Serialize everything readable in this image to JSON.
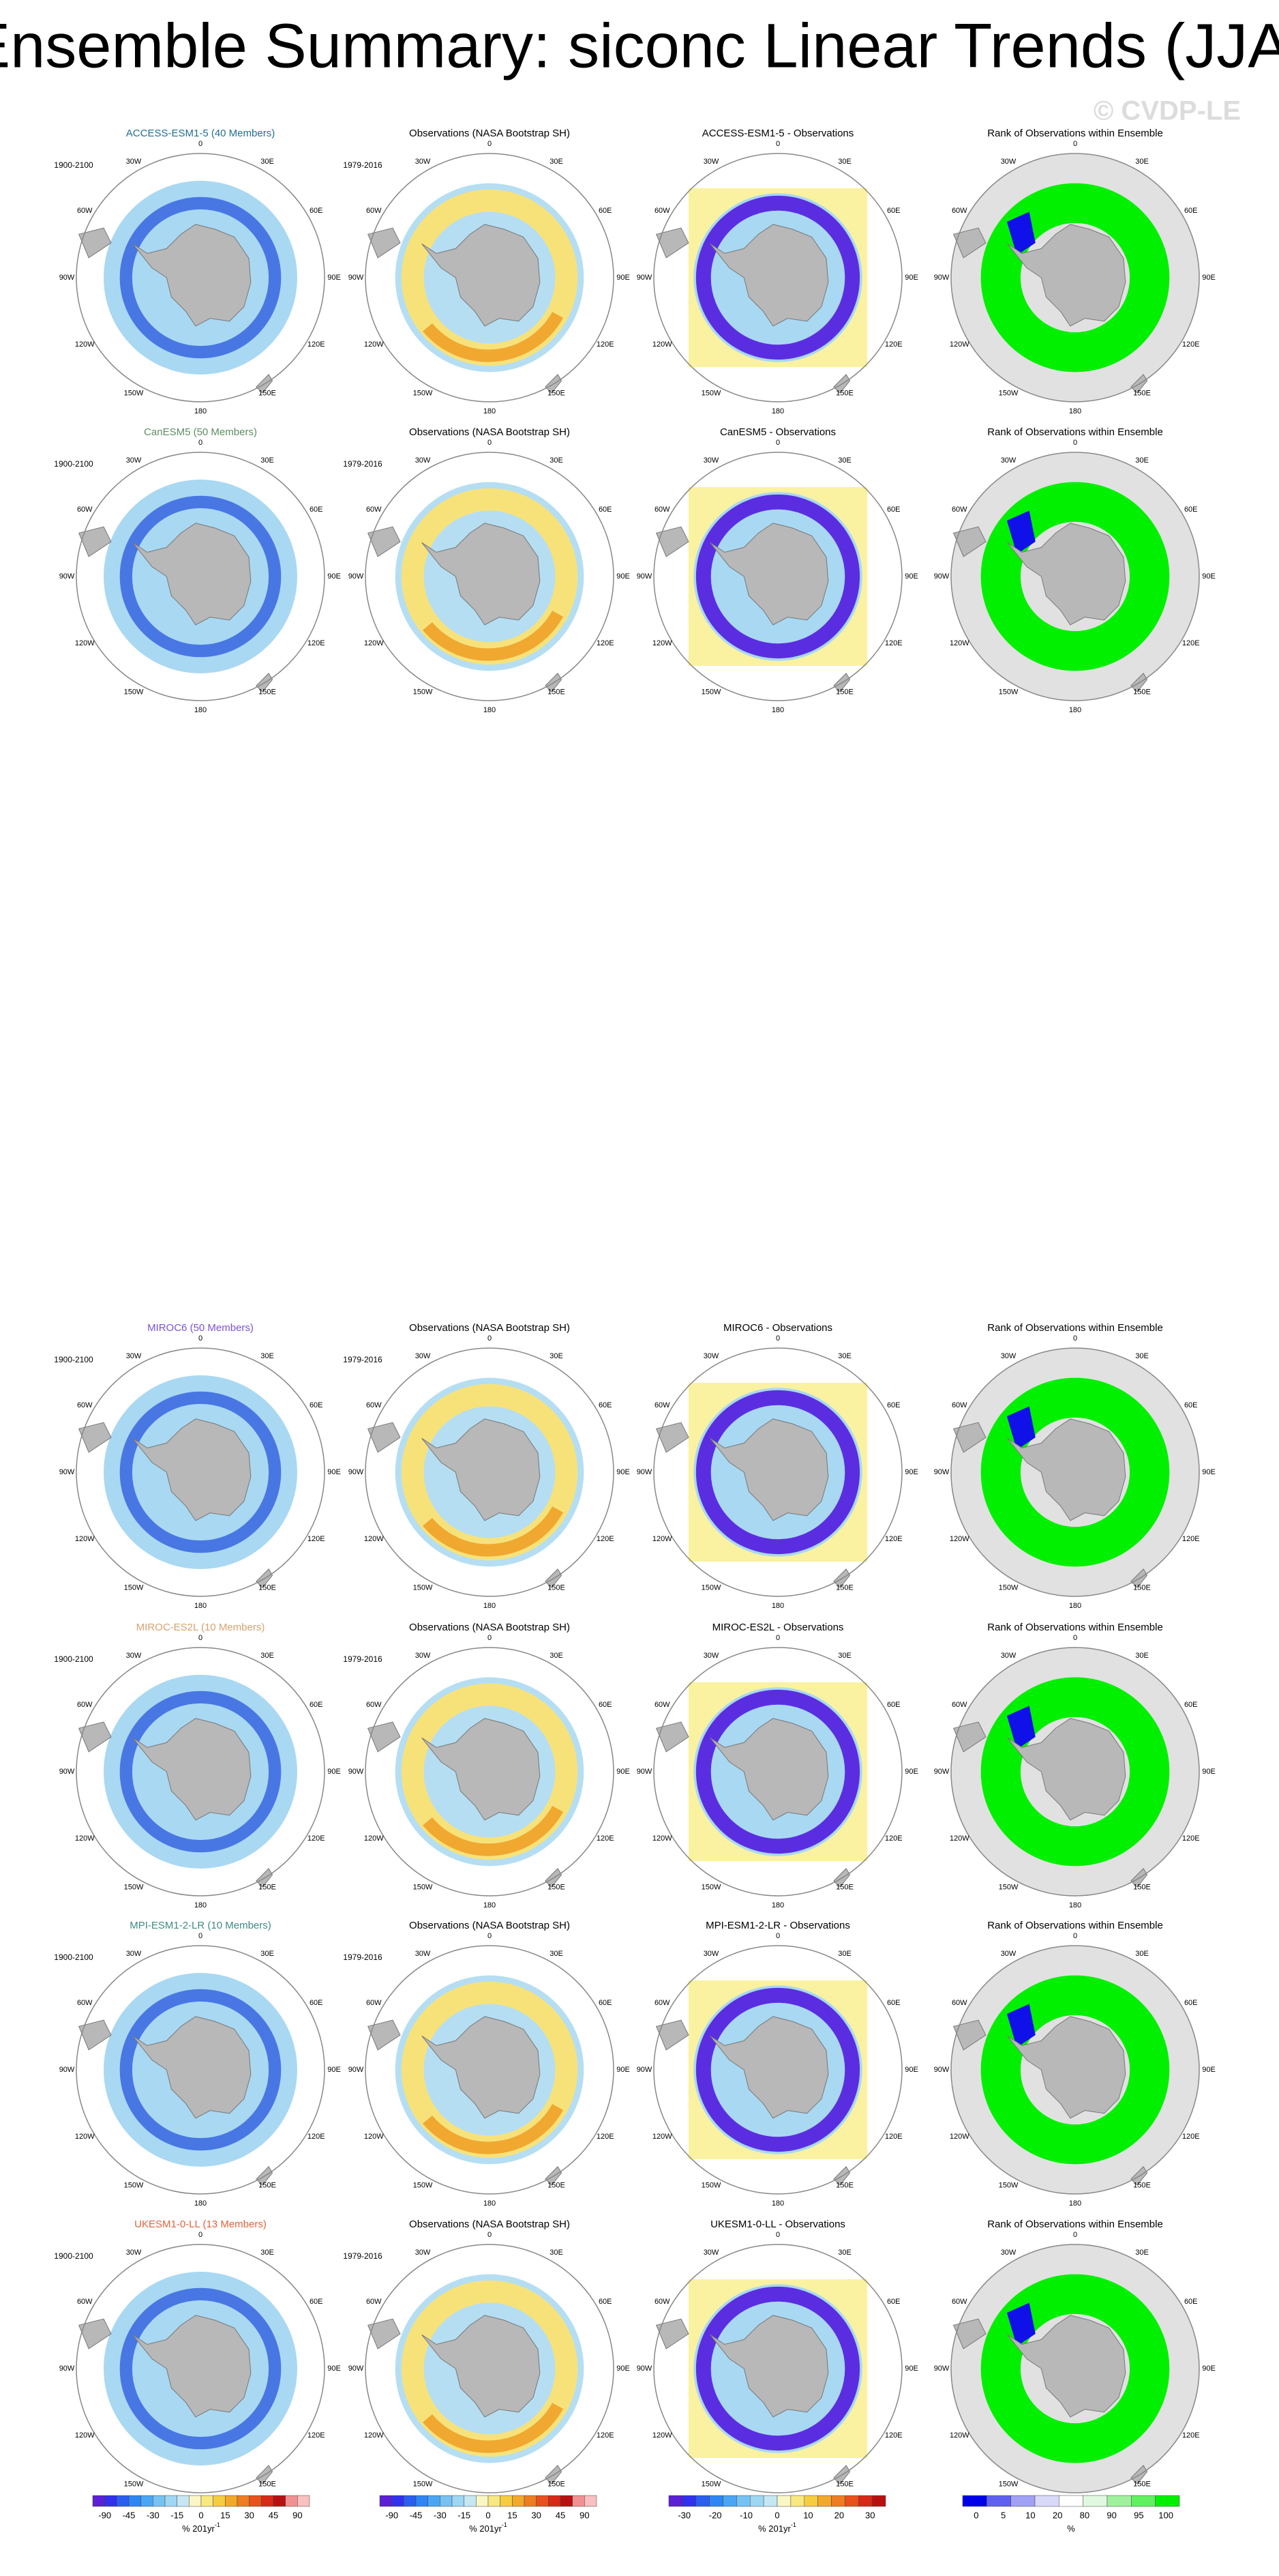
{
  "title": "Ensemble Summary: siconc Linear Trends (JJA)",
  "watermark": "© CVDP-LE",
  "longitudes": [
    "0",
    "30E",
    "60E",
    "90E",
    "120E",
    "150E",
    "180",
    "150W",
    "120W",
    "90W",
    "60W",
    "30W"
  ],
  "rows": [
    {
      "model_title": "ACCESS-ESM1-5 (40 Members)",
      "color": "#1f6f94",
      "model_period": "1900-2100",
      "obs_title": "Observations (NASA Bootstrap SH)",
      "obs_period": "1979-2016",
      "diff_title": "ACCESS-ESM1-5 - Observations",
      "rank_title": "Rank of Observations within Ensemble"
    },
    {
      "model_title": "CanESM5 (50 Members)",
      "color": "#5e8c64",
      "model_period": "1900-2100",
      "obs_title": "Observations (NASA Bootstrap SH)",
      "obs_period": "1979-2016",
      "diff_title": "CanESM5 - Observations",
      "rank_title": "Rank of Observations within Ensemble"
    },
    {
      "model_title": "MIROC6 (50 Members)",
      "color": "#7b52d6",
      "model_period": "1900-2100",
      "obs_title": "Observations (NASA Bootstrap SH)",
      "obs_period": "1979-2016",
      "diff_title": "MIROC6 - Observations",
      "rank_title": "Rank of Observations within Ensemble"
    },
    {
      "model_title": "MIROC-ES2L (10 Members)",
      "color": "#d4a271",
      "model_period": "1900-2100",
      "obs_title": "Observations (NASA Bootstrap SH)",
      "obs_period": "1979-2016",
      "diff_title": "MIROC-ES2L - Observations",
      "rank_title": "Rank of Observations within Ensemble"
    },
    {
      "model_title": "MPI-ESM1-2-LR (10 Members)",
      "color": "#3e8a84",
      "model_period": "1900-2100",
      "obs_title": "Observations (NASA Bootstrap SH)",
      "obs_period": "1979-2016",
      "diff_title": "MPI-ESM1-2-LR - Observations",
      "rank_title": "Rank of Observations within Ensemble"
    },
    {
      "model_title": "UKESM1-0-LL (13 Members)",
      "color": "#e2623c",
      "model_period": "1900-2100",
      "obs_title": "Observations (NASA Bootstrap SH)",
      "obs_period": "1979-2016",
      "diff_title": "UKESM1-0-LL - Observations",
      "rank_title": "Rank of Observations within Ensemble"
    }
  ],
  "colorbars": [
    {
      "ticks": [
        -90,
        -45,
        -30,
        -15,
        0,
        15,
        30,
        45,
        90
      ],
      "unit": "% 201yr",
      "unit_sup": "-1"
    },
    {
      "ticks": [
        -90,
        -45,
        -30,
        -15,
        0,
        15,
        30,
        45,
        90
      ],
      "unit": "% 201yr",
      "unit_sup": "-1"
    },
    {
      "ticks": [
        -30,
        -20,
        -10,
        0,
        10,
        20,
        30
      ],
      "unit": "% 201yr",
      "unit_sup": "-1"
    },
    {
      "ticks": [
        0,
        5,
        10,
        20,
        80,
        90,
        95,
        100
      ],
      "unit": "%"
    }
  ]
}
